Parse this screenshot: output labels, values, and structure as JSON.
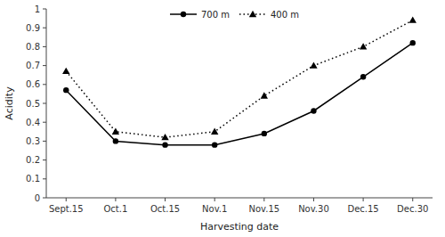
{
  "chart_data": {
    "type": "line",
    "x_label": "Harvesting date",
    "y_label": "Acidity",
    "categories": [
      "Sept.15",
      "Oct.1",
      "Oct.15",
      "Nov.1",
      "Nov.15",
      "Nov.30",
      "Dec.15",
      "Dec.30"
    ],
    "series": [
      {
        "name": "700 m",
        "color": "#000000",
        "marker": "circle",
        "line_style": "solid",
        "values": [
          0.57,
          0.3,
          0.28,
          0.28,
          0.34,
          0.46,
          0.64,
          0.82
        ]
      },
      {
        "name": "400 m",
        "color": "#000000",
        "marker": "triangle",
        "line_style": "dotted",
        "values": [
          0.67,
          0.35,
          0.32,
          0.35,
          0.54,
          0.7,
          0.8,
          0.94
        ]
      }
    ],
    "ylim": [
      0,
      1
    ],
    "yticks": [
      0,
      0.1,
      0.2,
      0.3,
      0.4,
      0.5,
      0.6,
      0.7,
      0.8,
      0.9,
      1
    ],
    "grid": false,
    "legend": "top"
  }
}
